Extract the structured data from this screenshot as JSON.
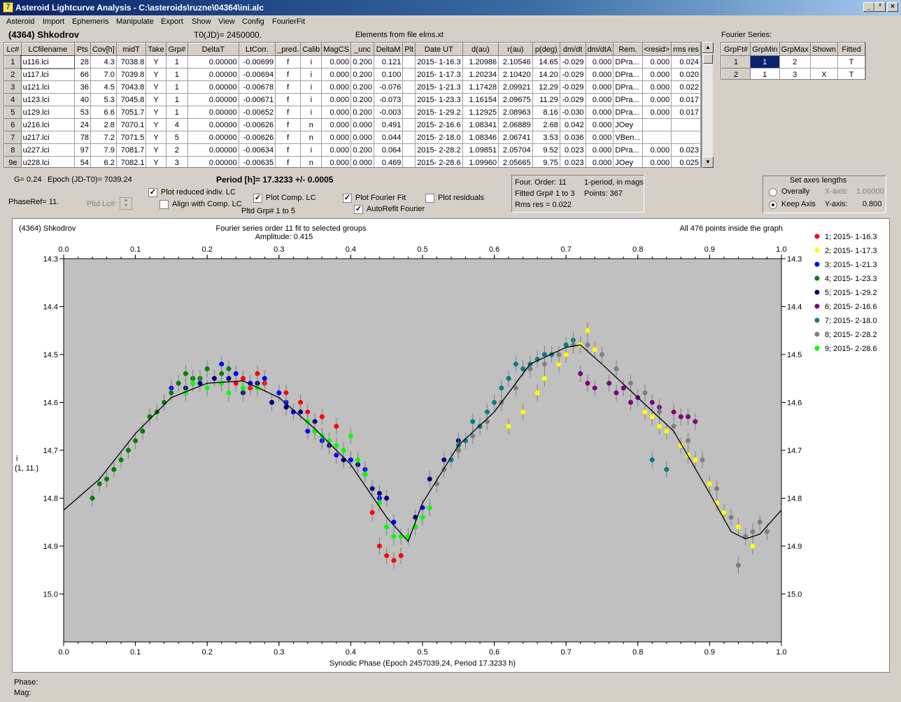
{
  "window": {
    "title": "Asteroid Lightcurve Analysis - C:\\asteroids\\ruzne\\04364\\ini.alc",
    "icon": "program-icon",
    "buttons": [
      "_",
      "²",
      "×"
    ]
  },
  "menu": [
    "Asteroid",
    "Import",
    "Ephemeris",
    "Manipulate",
    "Export",
    "Show",
    "View",
    "Config",
    "FourierFit"
  ],
  "header": {
    "asteroid": "(4364) Shkodrov",
    "t0": "T0(JD)= 2450000.",
    "elements": "Elements from file elms.xt"
  },
  "lc_table": {
    "columns": [
      "Lc#",
      "LCfilename",
      "Pts",
      "Cov[h]",
      "midT",
      "Take",
      "Grp#",
      "DeltaT",
      "LtCorr.",
      "_pred.",
      "Calib",
      "MagCS",
      "_unc",
      "DeltaM",
      "Plt",
      "Date UT",
      "d(au)",
      "r(au)",
      "p(deg)",
      "dm/dt",
      "dm/dtA",
      "Rem.",
      "<resid>",
      "rms res"
    ],
    "rows": [
      [
        "1",
        "u116.lci",
        "28",
        "4.3",
        "7038.8",
        "Y",
        "1",
        "0.00000",
        "-0.00699",
        "f",
        "i",
        "0.000",
        "0.200",
        "0.121",
        "",
        "2015- 1-16.3",
        "1.20986",
        "2.10546",
        "14.65",
        "-0.029",
        "0.000",
        "DPra...",
        "0.000",
        "0.024"
      ],
      [
        "2",
        "u117.lci",
        "66",
        "7.0",
        "7039.8",
        "Y",
        "1",
        "0.00000",
        "-0.00694",
        "f",
        "i",
        "0.000",
        "0.200",
        "0.100",
        "",
        "2015- 1-17.3",
        "1.20234",
        "2.10420",
        "14.20",
        "-0.029",
        "0.000",
        "DPra...",
        "0.000",
        "0.020"
      ],
      [
        "3",
        "u121.lci",
        "36",
        "4.5",
        "7043.8",
        "Y",
        "1",
        "0.00000",
        "-0.00678",
        "f",
        "i",
        "0.000",
        "0.200",
        "-0.076",
        "",
        "2015- 1-21.3",
        "1.17428",
        "2.09921",
        "12.29",
        "-0.029",
        "0.000",
        "DPra...",
        "0.000",
        "0.022"
      ],
      [
        "4",
        "u123.lci",
        "40",
        "5.3",
        "7045.8",
        "Y",
        "1",
        "0.00000",
        "-0.00671",
        "f",
        "i",
        "0.000",
        "0.200",
        "-0.073",
        "",
        "2015- 1-23.3",
        "1.16154",
        "2.09675",
        "11.29",
        "-0.029",
        "0.000",
        "DPra...",
        "0.000",
        "0.017"
      ],
      [
        "5",
        "u129.lci",
        "53",
        "6.6",
        "7051.7",
        "Y",
        "1",
        "0.00000",
        "-0.00652",
        "f",
        "i",
        "0.000",
        "0.200",
        "-0.003",
        "",
        "2015- 1-29.2",
        "1.12925",
        "2.08963",
        "8.16",
        "-0.030",
        "0.000",
        "DPra...",
        "0.000",
        "0.017"
      ],
      [
        "6",
        "u216.lci",
        "24",
        "2.8",
        "7070.1",
        "Y",
        "4",
        "0.00000",
        "-0.00626",
        "f",
        "n",
        "0.000",
        "0.000",
        "0.491",
        "",
        "2015- 2-16.6",
        "1.08341",
        "2.06889",
        "2.68",
        "0.042",
        "0.000",
        "JOey",
        "",
        ""
      ],
      [
        "7",
        "u217.lci",
        "78",
        "7.2",
        "7071.5",
        "Y",
        "5",
        "0.00000",
        "-0.00626",
        "f",
        "n",
        "0.000",
        "0.000",
        "0.044",
        "",
        "2015- 2-18.0",
        "1.08346",
        "2.06741",
        "3.53",
        "0.036",
        "0.000",
        "VBen...",
        "",
        ""
      ],
      [
        "8",
        "u227.lci",
        "97",
        "7.9",
        "7081.7",
        "Y",
        "2",
        "0.00000",
        "-0.00634",
        "f",
        "i",
        "0.000",
        "0.200",
        "0.064",
        "",
        "2015- 2-28.2",
        "1.09851",
        "2.05704",
        "9.52",
        "0.023",
        "0.000",
        "DPra...",
        "0.000",
        "0.023"
      ],
      [
        "9e",
        "u228.lci",
        "54",
        "6.2",
        "7082.1",
        "Y",
        "3",
        "0.00000",
        "-0.00635",
        "f",
        "n",
        "0.000",
        "0.000",
        "0.469",
        "",
        "2015- 2-28.6",
        "1.09960",
        "2.05665",
        "9.75",
        "0.023",
        "0.000",
        "JOey",
        "0.000",
        "0.025"
      ]
    ]
  },
  "fourier_series": {
    "title": "Fourier Series:",
    "columns": [
      "GrpFt#",
      "GrpMin",
      "GrpMax",
      "Shown",
      "Fitted"
    ],
    "rows": [
      [
        "1",
        "1",
        "2",
        "",
        "T"
      ],
      [
        "2",
        "1",
        "3",
        "X",
        "T"
      ]
    ]
  },
  "controls": {
    "g": "G= 0.24",
    "epoch": "Epoch (JD-T0)= 7039.24",
    "period": "Period [h]= 17.3233 +/- 0.0005",
    "phaseref": "PhaseRef= 11.",
    "pltd_lc": "Pltd Lc#:",
    "plot_reduced": "Plot reduced indiv. LC",
    "align_comp": "Align with Comp. LC",
    "plot_comp": "Plot Comp. LC",
    "pltd_grp": "Pltd Grp#  1   to   5",
    "plot_fourier": "Plot Fourier Fit",
    "autorefit": "AutoRefit Fourier",
    "plot_resid": "Plot residuals",
    "check_states": {
      "plot_reduced": true,
      "align_comp": false,
      "plot_comp": true,
      "plot_fourier": true,
      "autorefit": true,
      "plot_resid": false
    }
  },
  "fit_info": {
    "order": "Four. Order: 11",
    "periods": "1-period, in mags",
    "fitted": "Fitted Grp# 1 to 3",
    "points": "Points: 367",
    "rms": "Rms res     = 0.022"
  },
  "axes_box": {
    "title": "Set axes lengths",
    "overally": "Overally",
    "keep": "Keep Axis",
    "xaxis_label": "X-axis:",
    "xaxis_value": "1.00000",
    "yaxis_label": "Y-axis:",
    "yaxis_value": "0.800",
    "selected": "keep"
  },
  "status": {
    "phase": "Phase:",
    "mag": "Mag:"
  },
  "colors": {
    "titlebar": "#0a246a",
    "selected_cell": "#0a246a",
    "plot_bg": "#c0c0c0"
  },
  "chart_data": {
    "type": "scatter",
    "title": "Fourier series order 11 fit to selected groups",
    "subtitle": "Amplitude: 0.415",
    "object": "(4364) Shkodrov",
    "note": "All 476 points inside the graph",
    "xlabel": "Synodic Phase (Epoch 2457039.24, Period 17.3233 h)",
    "ylabel": "i",
    "ylabel2": "(1, 11.)",
    "xlim": [
      0,
      1
    ],
    "ylim": [
      14.3,
      15.1
    ],
    "y_inverted": true,
    "xticks": [
      0,
      0.1,
      0.2,
      0.3,
      0.4,
      0.5,
      0.6,
      0.7,
      0.8,
      0.9,
      1.0
    ],
    "xtick_labels": [
      "0.0",
      "0.1",
      "0.2",
      "0.3",
      "0.4",
      "0.5",
      "0.6",
      "0.7",
      "0.8",
      "0.9",
      "1.0"
    ],
    "yticks": [
      14.3,
      14.4,
      14.5,
      14.6,
      14.7,
      14.8,
      14.9,
      15.0
    ],
    "ytick_labels": [
      "14.3",
      "14.4",
      "14.5",
      "14.6",
      "14.7",
      "14.8",
      "14.9",
      "15.0"
    ],
    "legend": [
      "1; 2015- 1-16.3",
      "2; 2015- 1-17.3",
      "3; 2015- 1-21.3",
      "4; 2015- 1-23.3",
      "5; 2015- 1-29.2",
      "6; 2015- 2-16.6",
      "7; 2015- 2-18.0",
      "8; 2015- 2-28.2",
      "9; 2015- 2-28.6"
    ],
    "series_colors": [
      "#ff0000",
      "#ffff00",
      "#0000ff",
      "#007f00",
      "#00007f",
      "#7f007f",
      "#007f7f",
      "#7f7f7f",
      "#00ff00"
    ],
    "fit_curve": {
      "x": [
        0,
        0.05,
        0.1,
        0.15,
        0.2,
        0.25,
        0.3,
        0.35,
        0.4,
        0.45,
        0.48,
        0.5,
        0.55,
        0.6,
        0.65,
        0.7,
        0.72,
        0.75,
        0.8,
        0.85,
        0.9,
        0.93,
        0.95,
        0.97,
        1.0
      ],
      "y": [
        14.825,
        14.76,
        14.665,
        14.59,
        14.56,
        14.555,
        14.59,
        14.655,
        14.73,
        14.84,
        14.89,
        14.81,
        14.69,
        14.62,
        14.52,
        14.485,
        14.48,
        14.52,
        14.59,
        14.66,
        14.79,
        14.87,
        14.885,
        14.875,
        14.825
      ]
    },
    "series": [
      {
        "x": [
          0.43,
          0.44,
          0.45,
          0.46,
          0.47,
          0.48,
          0.36,
          0.38,
          0.4,
          0.33,
          0.31,
          0.34,
          0.24,
          0.25,
          0.26,
          0.28,
          0.27,
          0.29
        ],
        "y": [
          14.83,
          14.9,
          14.92,
          14.93,
          14.92,
          14.88,
          14.63,
          14.65,
          14.72,
          14.6,
          14.58,
          14.62,
          14.56,
          14.55,
          14.57,
          14.56,
          14.54,
          14.6
        ]
      },
      {
        "x": [
          0.62,
          0.64,
          0.66,
          0.67,
          0.69,
          0.7,
          0.72,
          0.73,
          0.74,
          0.82,
          0.84,
          0.86,
          0.88,
          0.9,
          0.92,
          0.94,
          0.96,
          0.91,
          0.87,
          0.83,
          0.81
        ],
        "y": [
          14.65,
          14.62,
          14.58,
          14.55,
          14.52,
          14.5,
          14.48,
          14.45,
          14.49,
          14.63,
          14.66,
          14.69,
          14.72,
          14.77,
          14.83,
          14.86,
          14.9,
          14.81,
          14.71,
          14.65,
          14.62
        ]
      },
      {
        "x": [
          0.15,
          0.22,
          0.26,
          0.3,
          0.32,
          0.34,
          0.38,
          0.4,
          0.42,
          0.44,
          0.46,
          0.48,
          0.5,
          0.36,
          0.24,
          0.28,
          0.31
        ],
        "y": [
          14.57,
          14.52,
          14.56,
          14.58,
          14.62,
          14.66,
          14.71,
          14.72,
          14.74,
          14.8,
          14.85,
          14.88,
          14.82,
          14.68,
          14.54,
          14.55,
          14.6
        ]
      },
      {
        "x": [
          0.04,
          0.06,
          0.07,
          0.08,
          0.09,
          0.1,
          0.11,
          0.12,
          0.14,
          0.15,
          0.16,
          0.17,
          0.18,
          0.19,
          0.2,
          0.22,
          0.23,
          0.13,
          0.05
        ],
        "y": [
          14.8,
          14.76,
          14.74,
          14.72,
          14.7,
          14.68,
          14.66,
          14.63,
          14.6,
          14.58,
          14.56,
          14.54,
          14.55,
          14.55,
          14.53,
          14.54,
          14.53,
          14.62,
          14.77
        ]
      },
      {
        "x": [
          0.17,
          0.19,
          0.21,
          0.23,
          0.25,
          0.27,
          0.29,
          0.31,
          0.33,
          0.35,
          0.37,
          0.39,
          0.41,
          0.42,
          0.43,
          0.44,
          0.45,
          0.49,
          0.51,
          0.53,
          0.55,
          0.35,
          0.39
        ],
        "y": [
          14.57,
          14.56,
          14.55,
          14.55,
          14.58,
          14.56,
          14.6,
          14.61,
          14.62,
          14.66,
          14.69,
          14.72,
          14.73,
          14.75,
          14.78,
          14.79,
          14.8,
          14.84,
          14.76,
          14.72,
          14.68,
          14.64,
          14.72
        ]
      },
      {
        "x": [
          0.72,
          0.73,
          0.74,
          0.76,
          0.77,
          0.78,
          0.79,
          0.8,
          0.82,
          0.83,
          0.85,
          0.86,
          0.87,
          0.88
        ],
        "y": [
          14.54,
          14.56,
          14.57,
          14.56,
          14.58,
          14.57,
          14.6,
          14.59,
          14.6,
          14.61,
          14.62,
          14.63,
          14.63,
          14.64
        ]
      },
      {
        "x": [
          0.54,
          0.55,
          0.56,
          0.58,
          0.6,
          0.61,
          0.62,
          0.63,
          0.64,
          0.65,
          0.66,
          0.67,
          0.68,
          0.7,
          0.71,
          0.55,
          0.57,
          0.59,
          0.82,
          0.84
        ],
        "y": [
          14.72,
          14.7,
          14.68,
          14.65,
          14.6,
          14.57,
          14.55,
          14.52,
          14.53,
          14.52,
          14.51,
          14.5,
          14.5,
          14.48,
          14.47,
          14.69,
          14.64,
          14.62,
          14.72,
          14.74
        ]
      },
      {
        "x": [
          0.52,
          0.53,
          0.55,
          0.57,
          0.59,
          0.61,
          0.63,
          0.65,
          0.67,
          0.69,
          0.71,
          0.73,
          0.75,
          0.77,
          0.79,
          0.81,
          0.83,
          0.85,
          0.87,
          0.89,
          0.91,
          0.93,
          0.95,
          0.96,
          0.97,
          0.98,
          0.94
        ],
        "y": [
          14.77,
          14.74,
          14.7,
          14.67,
          14.64,
          14.6,
          14.57,
          14.53,
          14.52,
          14.5,
          14.48,
          14.48,
          14.5,
          14.53,
          14.56,
          14.58,
          14.62,
          14.65,
          14.68,
          14.72,
          14.78,
          14.84,
          14.88,
          14.87,
          14.85,
          14.87,
          14.94
        ]
      },
      {
        "x": [
          0.17,
          0.18,
          0.2,
          0.22,
          0.23,
          0.25,
          0.27,
          0.34,
          0.35,
          0.36,
          0.37,
          0.38,
          0.39,
          0.4,
          0.41,
          0.42,
          0.44,
          0.45,
          0.46,
          0.47,
          0.48,
          0.49,
          0.5,
          0.51
        ],
        "y": [
          14.58,
          14.56,
          14.57,
          14.56,
          14.58,
          14.57,
          14.57,
          14.64,
          14.66,
          14.67,
          14.68,
          14.69,
          14.7,
          14.67,
          14.72,
          14.75,
          14.81,
          14.86,
          14.88,
          14.88,
          14.88,
          14.86,
          14.84,
          14.82
        ]
      }
    ]
  }
}
